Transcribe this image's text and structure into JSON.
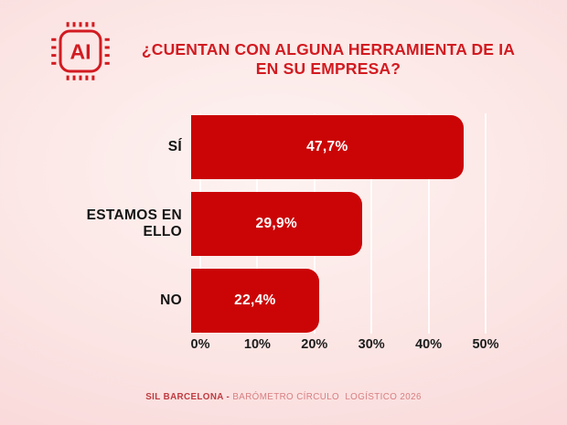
{
  "header": {
    "icon": "ai-chip-icon",
    "icon_text": "AI",
    "title_line1": "¿CUENTAN CON ALGUNA HERRAMIENTA DE IA",
    "title_line2": "EN SU EMPRESA?"
  },
  "chart_data": {
    "type": "bar",
    "orientation": "horizontal",
    "title": "¿Cuentan con alguna herramienta de IA en su empresa?",
    "categories": [
      "SÍ",
      "ESTAMOS EN ELLO",
      "NO"
    ],
    "values": [
      47.7,
      29.9,
      22.4
    ],
    "value_labels": [
      "47,7%",
      "29,9%",
      "22,4%"
    ],
    "x_ticks": [
      "0%",
      "10%",
      "20%",
      "30%",
      "40%",
      "50%"
    ],
    "x_tick_values": [
      0,
      10,
      20,
      30,
      40,
      50
    ],
    "xlim": [
      0,
      50
    ],
    "grid": "vertical-gridlines",
    "legend": "none",
    "bar_color": "#cb0506",
    "value_label_color": "#ffffff"
  },
  "footer": {
    "bold": "SIL BARCELONA - ",
    "rest": "BARÓMETRO CÍRCULO  LOGÍSTICO 2026"
  },
  "colors": {
    "title_red": "#d21b21",
    "bar_red": "#cb0506",
    "background_center": "#fdf3f1",
    "background_edge": "#f8ccd0",
    "category_label": "#141414"
  }
}
